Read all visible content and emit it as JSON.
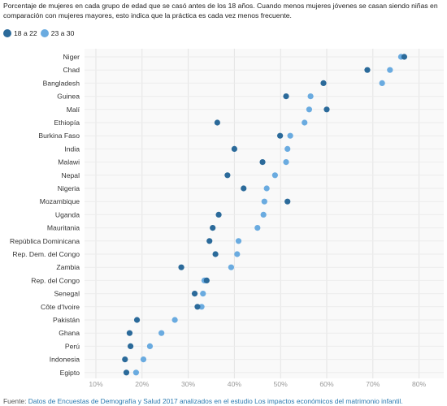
{
  "subtitle": "Porcentaje de mujeres en cada grupo de edad que se casó antes de los 18 años. Cuando menos mujeres jóvenes se casan siendo niñas en comparación con mujeres mayores, esto indica que la práctica es cada vez menos frecuente.",
  "footer": {
    "prefix": "Fuente: ",
    "link_text": "Datos de Encuestas de Demografía y Salud 2017 analizados en el estudio Los impactos económicos del matrimonio infantil."
  },
  "chart_data": {
    "type": "scatter",
    "orientation": "horizontal-dot-plot",
    "title": "",
    "xlabel": "",
    "ylabel": "",
    "xlim": [
      7,
      83
    ],
    "xticks": [
      10,
      20,
      30,
      40,
      50,
      60,
      70,
      80
    ],
    "xtick_labels": [
      "10%",
      "20%",
      "30%",
      "40%",
      "50%",
      "60%",
      "70%",
      "80%"
    ],
    "grid": true,
    "legend_position": "top-left",
    "categories": [
      "Niger",
      "Chad",
      "Bangladesh",
      "Guinea",
      "Malí",
      "Ethiopía",
      "Burkina Faso",
      "India",
      "Malawi",
      "Nepal",
      "Nigeria",
      "Mozambique",
      "Uganda",
      "Mauritania",
      "República Dominicana",
      "Rep. Dem. del Congo",
      "Zambia",
      "Rep. del Congo",
      "Senegal",
      "Côte d'Ivoire",
      "Pakistán",
      "Ghana",
      "Perú",
      "Indonesia",
      "Egipto"
    ],
    "series": [
      {
        "name": "18 a 22",
        "color": "#2b6a9a",
        "values": [
          76.8,
          68.8,
          59.3,
          51.2,
          60.0,
          36.3,
          49.9,
          40.0,
          46.1,
          38.5,
          42.0,
          51.5,
          36.6,
          35.3,
          34.6,
          35.9,
          28.5,
          34.0,
          31.4,
          32.0,
          18.9,
          17.3,
          17.5,
          16.3,
          16.6
        ]
      },
      {
        "name": "23 a 30",
        "color": "#6aabe0",
        "values": [
          76.1,
          73.7,
          72.0,
          56.5,
          56.2,
          55.2,
          52.1,
          51.5,
          51.2,
          48.8,
          47.0,
          46.5,
          46.3,
          45.0,
          40.9,
          40.6,
          39.3,
          33.5,
          33.2,
          32.9,
          27.1,
          24.2,
          21.7,
          20.3,
          18.7
        ]
      }
    ]
  }
}
